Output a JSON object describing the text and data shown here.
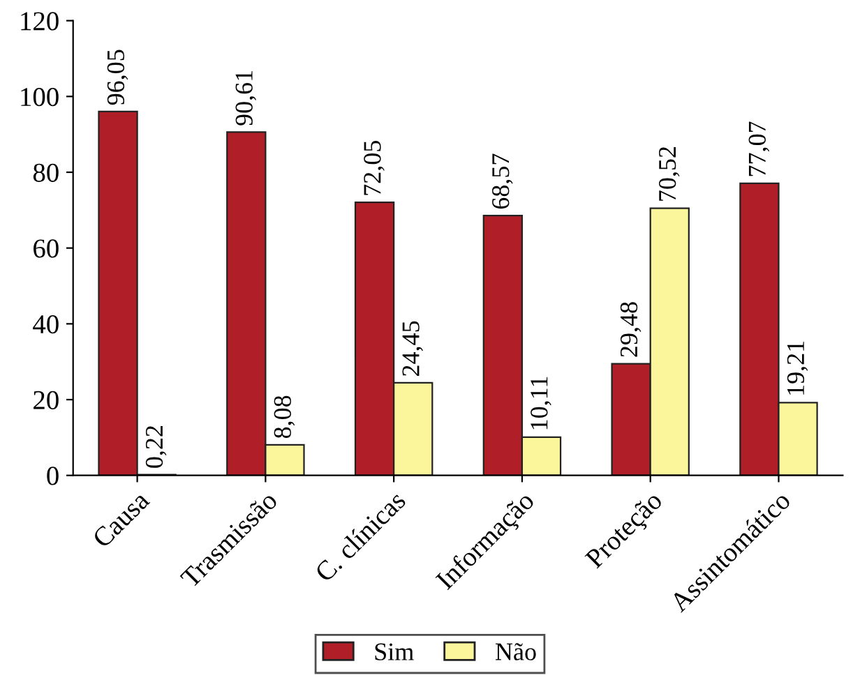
{
  "chart_data": {
    "type": "bar",
    "categories": [
      "Causa",
      "Trasmissão",
      "C. clínicas",
      "Informação",
      "Proteção",
      "Assintomático"
    ],
    "series": [
      {
        "name": "Sim",
        "color": "#b01e28",
        "values": [
          96.05,
          90.61,
          72.05,
          68.57,
          29.48,
          77.07
        ],
        "value_labels": [
          "96,05",
          "90,61",
          "72,05",
          "68,57",
          "29,48",
          "77,07"
        ]
      },
      {
        "name": "Não",
        "color": "#fbf59b",
        "values": [
          0.22,
          8.08,
          24.45,
          10.11,
          70.52,
          19.21
        ],
        "value_labels": [
          "0,22",
          "8,08",
          "24,45",
          "10,11",
          "70,52",
          "19,21"
        ]
      }
    ],
    "ylim": [
      0,
      120
    ],
    "yticks": [
      0,
      20,
      40,
      60,
      80,
      100,
      120
    ],
    "grid": false,
    "legend": "bottom"
  }
}
